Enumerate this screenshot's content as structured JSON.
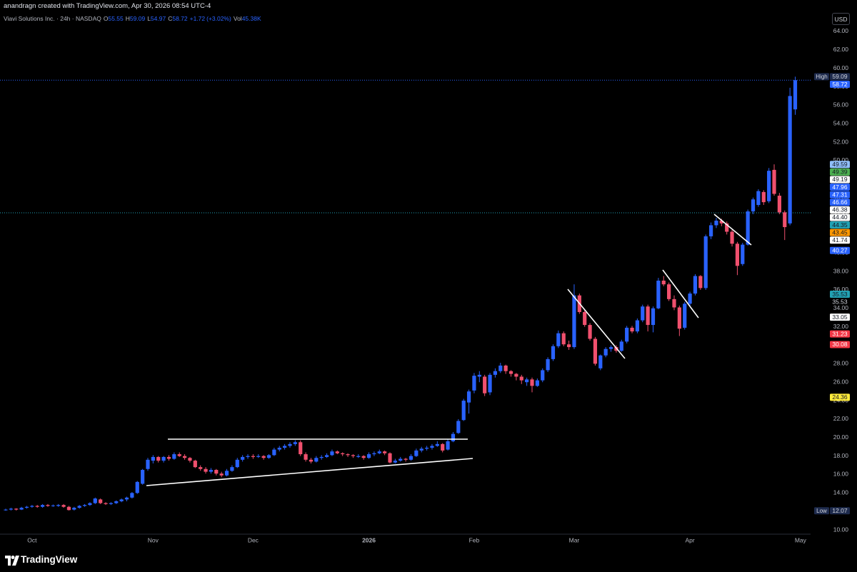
{
  "header": {
    "attribution": "anandragn created with TradingView.com, Apr 30, 2026 08:54 UTC-4"
  },
  "chart_data": {
    "type": "candlestick",
    "title": "Viavi Solutions Inc. · 24h · NASDAQ",
    "legend": [
      {
        "label": "O",
        "value": 55.55
      },
      {
        "label": "H",
        "value": 59.09
      },
      {
        "label": "L",
        "value": 54.97
      },
      {
        "label": "C",
        "value": 58.72
      }
    ],
    "change": {
      "value": 1.72,
      "label": "+1.72",
      "percent": 3.02,
      "percent_label": "(+3.02%)"
    },
    "volume": {
      "label": "Vol",
      "value": 45380,
      "value_label": "45.38K"
    },
    "currency": "USD",
    "up_color": "#2962ff",
    "down_color": "#f0506e",
    "categories": [
      null,
      null,
      null,
      null,
      null,
      "Oct",
      null,
      null,
      null,
      null,
      null,
      null,
      null,
      null,
      null,
      null,
      null,
      null,
      null,
      null,
      null,
      null,
      null,
      null,
      null,
      null,
      null,
      null,
      "Nov",
      null,
      null,
      null,
      null,
      null,
      null,
      null,
      null,
      null,
      null,
      null,
      null,
      null,
      null,
      null,
      null,
      null,
      null,
      "Dec",
      null,
      null,
      null,
      null,
      null,
      null,
      null,
      null,
      null,
      null,
      null,
      null,
      null,
      null,
      null,
      null,
      null,
      null,
      null,
      null,
      null,
      "2026",
      null,
      null,
      null,
      null,
      null,
      null,
      null,
      null,
      null,
      null,
      null,
      null,
      null,
      null,
      null,
      null,
      null,
      null,
      null,
      "Feb",
      null,
      null,
      null,
      null,
      null,
      null,
      null,
      null,
      null,
      null,
      null,
      null,
      null,
      null,
      null,
      null,
      null,
      null,
      "Mar",
      null,
      null,
      null,
      null,
      null,
      null,
      null,
      null,
      null,
      null,
      null,
      null,
      null,
      null,
      null,
      null,
      null,
      null,
      null,
      null,
      null,
      "Apr",
      null,
      null,
      null,
      null,
      null,
      null,
      null,
      null,
      null,
      null,
      null,
      null,
      null,
      null,
      null,
      null,
      null,
      null,
      null,
      null,
      "May"
    ],
    "ohlc": [
      [
        12.15,
        12.3,
        12.07,
        12.2
      ],
      [
        12.2,
        12.4,
        12.1,
        12.3
      ],
      [
        12.3,
        12.35,
        12.1,
        12.2
      ],
      [
        12.2,
        12.5,
        12.15,
        12.4
      ],
      [
        12.4,
        12.6,
        12.3,
        12.5
      ],
      [
        12.5,
        12.7,
        12.4,
        12.6
      ],
      [
        12.6,
        12.7,
        12.4,
        12.5
      ],
      [
        12.5,
        12.8,
        12.4,
        12.7
      ],
      [
        12.7,
        12.8,
        12.5,
        12.6
      ],
      [
        12.6,
        12.75,
        12.5,
        12.65
      ],
      [
        12.6,
        12.8,
        12.5,
        12.7
      ],
      [
        12.7,
        12.8,
        12.4,
        12.5
      ],
      [
        12.5,
        12.6,
        12.1,
        12.15
      ],
      [
        12.2,
        12.5,
        12.1,
        12.4
      ],
      [
        12.4,
        12.7,
        12.3,
        12.6
      ],
      [
        12.6,
        12.8,
        12.5,
        12.7
      ],
      [
        12.7,
        13.0,
        12.6,
        12.9
      ],
      [
        12.9,
        13.5,
        12.8,
        13.4
      ],
      [
        13.3,
        13.4,
        12.8,
        12.9
      ],
      [
        12.9,
        13.0,
        12.7,
        12.8
      ],
      [
        12.8,
        13.0,
        12.7,
        12.9
      ],
      [
        12.9,
        13.2,
        12.8,
        13.1
      ],
      [
        13.1,
        13.4,
        13.0,
        13.3
      ],
      [
        13.3,
        13.6,
        13.1,
        13.5
      ],
      [
        13.5,
        14.1,
        13.4,
        14.0
      ],
      [
        14.0,
        15.3,
        13.9,
        15.2
      ],
      [
        15.0,
        16.6,
        14.9,
        16.5
      ],
      [
        16.6,
        17.8,
        16.4,
        17.6
      ],
      [
        17.5,
        18.1,
        17.2,
        17.9
      ],
      [
        17.9,
        18.0,
        17.3,
        17.5
      ],
      [
        17.5,
        18.0,
        17.3,
        17.9
      ],
      [
        17.9,
        18.1,
        17.5,
        17.7
      ],
      [
        17.7,
        18.4,
        17.6,
        18.2
      ],
      [
        18.2,
        18.4,
        17.9,
        18.0
      ],
      [
        18.0,
        18.2,
        17.6,
        17.8
      ],
      [
        17.8,
        17.9,
        17.3,
        17.5
      ],
      [
        17.5,
        17.6,
        16.7,
        16.8
      ],
      [
        16.8,
        17.0,
        16.4,
        16.6
      ],
      [
        16.6,
        16.8,
        16.1,
        16.3
      ],
      [
        16.3,
        16.7,
        16.1,
        16.5
      ],
      [
        16.5,
        16.6,
        15.9,
        16.1
      ],
      [
        16.1,
        16.3,
        15.7,
        15.9
      ],
      [
        15.9,
        16.6,
        15.8,
        16.4
      ],
      [
        16.4,
        17.0,
        16.3,
        16.8
      ],
      [
        16.8,
        17.8,
        16.7,
        17.6
      ],
      [
        17.6,
        18.1,
        17.4,
        17.9
      ],
      [
        17.9,
        18.2,
        17.7,
        18.0
      ],
      [
        18.0,
        18.2,
        17.7,
        17.9
      ],
      [
        17.9,
        18.2,
        17.8,
        18.0
      ],
      [
        18.0,
        18.1,
        17.6,
        17.8
      ],
      [
        17.8,
        18.2,
        17.7,
        18.1
      ],
      [
        18.1,
        18.9,
        18.0,
        18.7
      ],
      [
        18.7,
        19.1,
        18.5,
        18.9
      ],
      [
        18.9,
        19.3,
        18.7,
        19.1
      ],
      [
        19.1,
        19.5,
        18.9,
        19.3
      ],
      [
        19.3,
        19.7,
        19.1,
        19.5
      ],
      [
        19.5,
        19.7,
        18.0,
        18.2
      ],
      [
        18.2,
        18.4,
        17.4,
        17.6
      ],
      [
        17.6,
        17.8,
        17.2,
        17.4
      ],
      [
        17.4,
        18.0,
        17.3,
        17.8
      ],
      [
        17.8,
        18.1,
        17.6,
        17.9
      ],
      [
        17.9,
        18.3,
        17.8,
        18.1
      ],
      [
        18.1,
        18.7,
        18.0,
        18.5
      ],
      [
        18.5,
        18.6,
        18.2,
        18.3
      ],
      [
        18.3,
        18.4,
        18.0,
        18.2
      ],
      [
        18.2,
        18.3,
        17.9,
        18.1
      ],
      [
        18.1,
        18.2,
        17.8,
        18.0
      ],
      [
        17.9,
        18.2,
        17.8,
        18.0
      ],
      [
        18.0,
        18.1,
        17.6,
        17.8
      ],
      [
        17.8,
        18.4,
        17.7,
        18.2
      ],
      [
        18.2,
        18.5,
        18.0,
        18.3
      ],
      [
        18.3,
        18.7,
        18.2,
        18.5
      ],
      [
        18.5,
        18.6,
        18.1,
        18.3
      ],
      [
        18.3,
        18.4,
        17.2,
        17.3
      ],
      [
        17.3,
        17.7,
        17.2,
        17.5
      ],
      [
        17.5,
        17.9,
        17.4,
        17.7
      ],
      [
        17.7,
        17.8,
        17.4,
        17.6
      ],
      [
        17.6,
        18.2,
        17.5,
        18.0
      ],
      [
        18.0,
        18.8,
        17.9,
        18.6
      ],
      [
        18.6,
        19.0,
        18.4,
        18.8
      ],
      [
        18.8,
        19.1,
        18.6,
        18.9
      ],
      [
        18.9,
        19.3,
        18.7,
        19.1
      ],
      [
        19.1,
        19.6,
        19.0,
        19.3
      ],
      [
        19.3,
        19.4,
        18.4,
        18.6
      ],
      [
        18.7,
        19.8,
        18.6,
        19.6
      ],
      [
        19.6,
        20.6,
        19.5,
        20.4
      ],
      [
        20.5,
        22.0,
        20.4,
        21.8
      ],
      [
        21.9,
        24.2,
        21.8,
        24.0
      ],
      [
        23.8,
        25.2,
        22.6,
        25.0
      ],
      [
        25.1,
        27.0,
        24.8,
        26.7
      ],
      [
        26.6,
        27.2,
        26.0,
        26.8
      ],
      [
        26.6,
        26.8,
        24.5,
        24.8
      ],
      [
        24.9,
        27.0,
        24.6,
        26.8
      ],
      [
        26.8,
        27.5,
        26.5,
        27.2
      ],
      [
        27.2,
        28.1,
        27.0,
        27.8
      ],
      [
        27.8,
        27.9,
        26.9,
        27.2
      ],
      [
        27.2,
        27.3,
        26.6,
        26.9
      ],
      [
        26.9,
        27.0,
        26.2,
        26.6
      ],
      [
        26.6,
        26.8,
        25.8,
        26.2
      ],
      [
        26.0,
        26.5,
        25.6,
        26.3
      ],
      [
        26.3,
        26.5,
        24.9,
        25.6
      ],
      [
        25.6,
        26.4,
        25.5,
        26.2
      ],
      [
        26.2,
        27.5,
        26.0,
        27.3
      ],
      [
        27.3,
        28.7,
        27.1,
        28.5
      ],
      [
        28.5,
        30.1,
        28.3,
        29.9
      ],
      [
        29.9,
        31.6,
        29.7,
        31.3
      ],
      [
        31.3,
        31.5,
        29.9,
        30.1
      ],
      [
        30.1,
        30.5,
        29.5,
        29.8
      ],
      [
        29.8,
        36.6,
        29.6,
        35.4
      ],
      [
        35.4,
        35.6,
        33.4,
        33.6
      ],
      [
        33.6,
        33.8,
        32.0,
        32.2
      ],
      [
        32.2,
        32.4,
        30.5,
        30.7
      ],
      [
        30.7,
        30.9,
        27.8,
        28.0
      ],
      [
        27.5,
        29.0,
        27.3,
        28.9
      ],
      [
        28.9,
        29.8,
        28.7,
        29.6
      ],
      [
        29.6,
        30.0,
        29.3,
        29.8
      ],
      [
        29.8,
        30.0,
        29.2,
        29.4
      ],
      [
        29.4,
        30.6,
        29.3,
        30.4
      ],
      [
        30.4,
        32.1,
        30.2,
        31.9
      ],
      [
        31.9,
        32.1,
        31.3,
        31.5
      ],
      [
        31.5,
        32.9,
        31.3,
        32.7
      ],
      [
        32.7,
        34.4,
        32.5,
        34.2
      ],
      [
        34.2,
        34.4,
        31.5,
        32.2
      ],
      [
        32.2,
        34.2,
        31.4,
        34.0
      ],
      [
        34.0,
        37.3,
        33.9,
        37.0
      ],
      [
        37.0,
        37.5,
        36.4,
        36.6
      ],
      [
        36.6,
        36.8,
        34.8,
        35.0
      ],
      [
        35.0,
        35.4,
        33.8,
        34.1
      ],
      [
        34.1,
        34.3,
        31.0,
        31.8
      ],
      [
        31.9,
        34.7,
        31.7,
        34.5
      ],
      [
        34.5,
        35.8,
        34.2,
        35.6
      ],
      [
        35.6,
        37.7,
        35.4,
        37.5
      ],
      [
        37.5,
        37.6,
        36.0,
        36.2
      ],
      [
        36.2,
        42.0,
        36.0,
        41.8
      ],
      [
        41.8,
        43.3,
        41.5,
        43.0
      ],
      [
        43.0,
        43.8,
        42.7,
        43.5
      ],
      [
        43.5,
        43.7,
        42.9,
        43.2
      ],
      [
        43.2,
        43.4,
        42.0,
        42.3
      ],
      [
        42.3,
        42.5,
        40.7,
        41.0
      ],
      [
        41.0,
        41.2,
        37.6,
        38.6
      ],
      [
        38.8,
        41.1,
        38.6,
        40.9
      ],
      [
        40.9,
        44.7,
        40.8,
        44.5
      ],
      [
        44.5,
        46.0,
        44.2,
        45.8
      ],
      [
        45.2,
        46.9,
        45.0,
        46.7
      ],
      [
        46.6,
        46.8,
        45.2,
        45.5
      ],
      [
        45.6,
        49.2,
        45.4,
        48.9
      ],
      [
        49.0,
        49.6,
        46.2,
        46.4
      ],
      [
        46.2,
        46.5,
        44.2,
        44.4
      ],
      [
        44.4,
        44.6,
        41.4,
        42.8
      ],
      [
        43.2,
        57.9,
        43.0,
        57.0
      ],
      [
        55.55,
        59.09,
        54.97,
        58.72
      ],
      null
    ],
    "ylim": [
      9.54,
      66.24
    ],
    "yticks": [
      {
        "value": 10,
        "label": "10.00"
      },
      {
        "value": 12,
        "label": "12.00"
      },
      {
        "value": 14,
        "label": "14.00"
      },
      {
        "value": 16,
        "label": "16.00"
      },
      {
        "value": 18,
        "label": "18.00"
      },
      {
        "value": 20,
        "label": "20.00"
      },
      {
        "value": 22,
        "label": "22.00"
      },
      {
        "value": 24,
        "label": "24.00"
      },
      {
        "value": 26,
        "label": "26.00"
      },
      {
        "value": 28,
        "label": "28.00"
      },
      {
        "value": 30,
        "label": "30.00"
      },
      {
        "value": 32,
        "label": "32.00"
      },
      {
        "value": 34,
        "label": "34.00"
      },
      {
        "value": 36,
        "label": "36.00"
      },
      {
        "value": 38,
        "label": "38.00"
      },
      {
        "value": 40,
        "label": "40.00"
      },
      {
        "value": 42,
        "label": "42.00"
      },
      {
        "value": 44,
        "label": "44.00"
      },
      {
        "value": 46,
        "label": "46.00"
      },
      {
        "value": 48,
        "label": "48.00"
      },
      {
        "value": 50,
        "label": "50.00"
      },
      {
        "value": 52,
        "label": "52.00"
      },
      {
        "value": 54,
        "label": "54.00"
      },
      {
        "value": 56,
        "label": "56.00"
      },
      {
        "value": 58,
        "label": "58.00"
      },
      {
        "value": 60,
        "label": "60.00"
      },
      {
        "value": 62,
        "label": "62.00"
      },
      {
        "value": 64,
        "label": "64.00"
      }
    ],
    "grid": false,
    "price_labels": [
      {
        "value": 59.09,
        "tag": "High",
        "bg": "#1e2b4d",
        "fg": "#d1d4dc"
      },
      {
        "value": 58.72,
        "bg": "#2962ff",
        "fg": "#ffffff",
        "line": true
      },
      {
        "value": 49.59,
        "bg": "#90bff9",
        "fg": "#131722"
      },
      {
        "value": 49.39,
        "bg": "#4caf50",
        "fg": "#131722"
      },
      {
        "value": 49.19,
        "bg": "#ffffff",
        "fg": "#131722"
      },
      {
        "value": 47.96,
        "bg": "#2962ff",
        "fg": "#ffffff"
      },
      {
        "value": 47.31,
        "bg": "#2962ff",
        "fg": "#ffffff"
      },
      {
        "value": 46.66,
        "bg": "#2962ff",
        "fg": "#ffffff"
      },
      {
        "value": 46.38,
        "bg": "#ffffff",
        "fg": "#131722"
      },
      {
        "value": 44.4,
        "label": "44.40",
        "bg": "#ffffff",
        "fg": "#131722"
      },
      {
        "value": 44.35,
        "bg": "#22a1b3",
        "fg": "#131722",
        "line": true
      },
      {
        "value": 43.45,
        "bg": "#ff9800",
        "fg": "#131722"
      },
      {
        "value": 41.74,
        "bg": "#ffffff",
        "fg": "#131722"
      },
      {
        "value": 40.27,
        "bg": "#2962ff",
        "fg": "#ffffff"
      },
      {
        "value": 35.53,
        "bg": "#22a1b3",
        "fg": "#131722"
      },
      {
        "value": 35.53,
        "bg": "#000000",
        "fg": "#d1d4dc"
      },
      {
        "value": 33.05,
        "bg": "#ffffff",
        "fg": "#131722"
      },
      {
        "value": 31.23,
        "bg": "#f23645",
        "fg": "#ffffff"
      },
      {
        "value": 30.08,
        "bg": "#f23645",
        "fg": "#ffffff"
      },
      {
        "value": 24.36,
        "bg": "#ffeb3b",
        "fg": "#131722"
      },
      {
        "value": 12.07,
        "tag": "Low",
        "bg": "#1e2b4d",
        "fg": "#d1d4dc"
      }
    ]
  },
  "footer": {
    "brand": "TradingView"
  }
}
